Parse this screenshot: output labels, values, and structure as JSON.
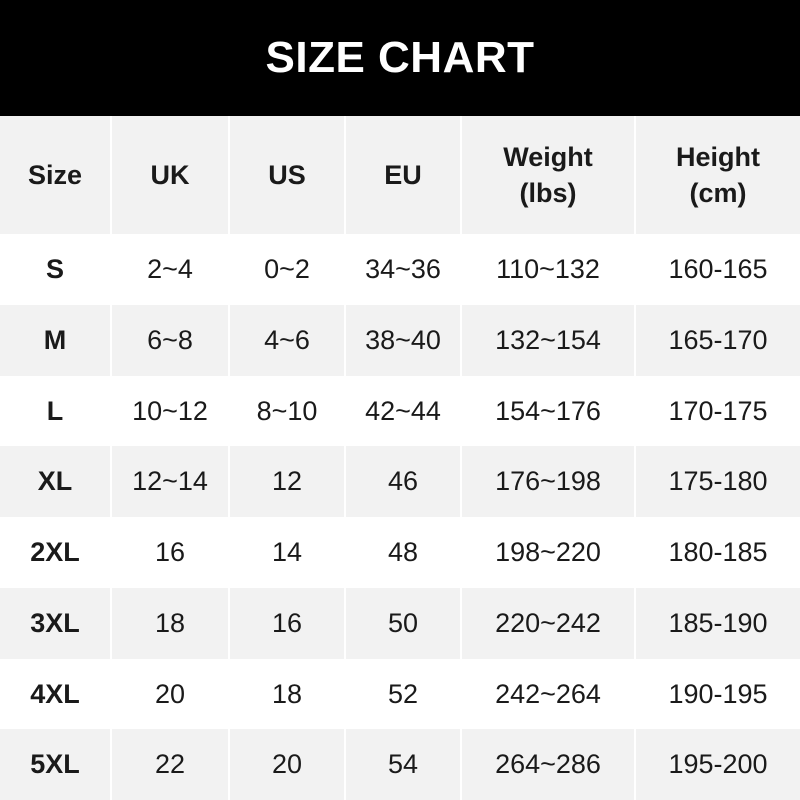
{
  "title": "SIZE CHART",
  "headers": [
    "Size",
    "UK",
    "US",
    "EU",
    "Weight\n(lbs)",
    "Height\n(cm)"
  ],
  "rows": [
    [
      "S",
      "2~4",
      "0~2",
      "34~36",
      "110~132",
      "160-165"
    ],
    [
      "M",
      "6~8",
      "4~6",
      "38~40",
      "132~154",
      "165-170"
    ],
    [
      "L",
      "10~12",
      "8~10",
      "42~44",
      "154~176",
      "170-175"
    ],
    [
      "XL",
      "12~14",
      "12",
      "46",
      "176~198",
      "175-180"
    ],
    [
      "2XL",
      "16",
      "14",
      "48",
      "198~220",
      "180-185"
    ],
    [
      "3XL",
      "18",
      "16",
      "50",
      "220~242",
      "185-190"
    ],
    [
      "4XL",
      "20",
      "18",
      "52",
      "242~264",
      "190-195"
    ],
    [
      "5XL",
      "22",
      "20",
      "54",
      "264~286",
      "195-200"
    ]
  ],
  "colors": {
    "banner": "#000000",
    "header_bg": "#f2f2f2",
    "stripe": "#f2f2f2",
    "text": "#1a1a1a"
  }
}
